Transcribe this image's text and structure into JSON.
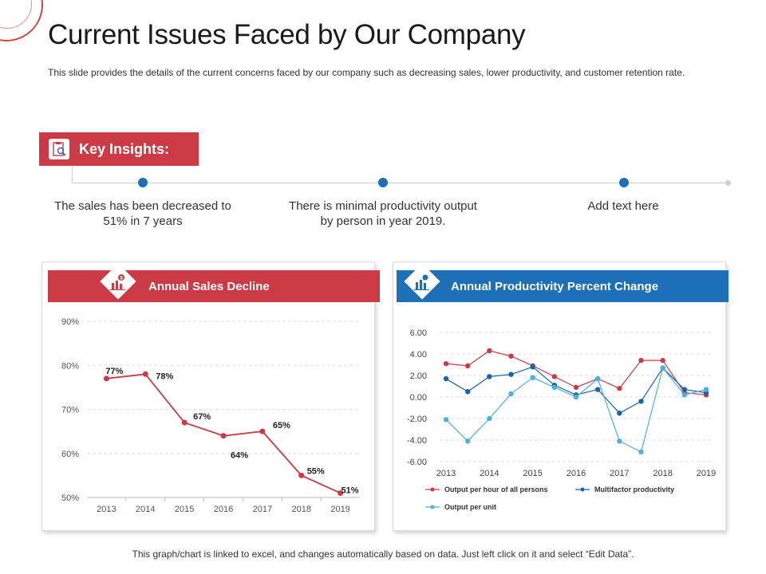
{
  "slide": {
    "title": "Current Issues Faced by Our Company",
    "subtitle": "This slide provides the details of the current concerns faced by our company such as decreasing sales, lower productivity, and customer retention rate.",
    "footer": "This graph/chart is linked to excel, and changes automatically based on data. Just left click on it and select “Edit Data”."
  },
  "insights": {
    "header": "Key Insights:",
    "items": [
      "The sales has been decreased to 51% in 7 years",
      "There is minimal productivity output by person in year 2019.",
      "Add text here"
    ]
  },
  "colors": {
    "red": "#cc3a46",
    "blue": "#1d6fb8",
    "light_blue": "#4ab0e2",
    "dark_blue": "#1565a8"
  },
  "chart_data": [
    {
      "type": "line",
      "title": "Annual Sales Decline",
      "categories": [
        "2013",
        "2014",
        "2015",
        "2016",
        "2017",
        "2018",
        "2019"
      ],
      "values": [
        77,
        78,
        67,
        64,
        65,
        55,
        51
      ],
      "data_labels": [
        "77%",
        "78%",
        "67%",
        "64%",
        "65%",
        "55%",
        "51%"
      ],
      "yticks": [
        "50%",
        "60%",
        "70%",
        "80%",
        "90%"
      ],
      "ylim": [
        50,
        90
      ],
      "grid": true
    },
    {
      "type": "line",
      "title": "Annual Productivity Percent Change",
      "x_labels": [
        "2013",
        "2014",
        "2015",
        "2016",
        "2017",
        "2018",
        "2019"
      ],
      "yticks": [
        "6.00",
        "4.00",
        "2.00",
        "0.00",
        "-2.00",
        "-4.00",
        "-6.00"
      ],
      "ylim": [
        -6,
        6
      ],
      "grid": true,
      "legend_position": "bottom",
      "series": [
        {
          "name": "Output per hour of all persons",
          "values": [
            3.1,
            2.9,
            4.3,
            3.8,
            2.9,
            1.9,
            0.9,
            1.7,
            0.8,
            3.4,
            3.4,
            0.4,
            0.2
          ]
        },
        {
          "name": "Multifactor productivity",
          "values": [
            1.7,
            0.5,
            1.9,
            2.1,
            2.8,
            1.1,
            0.2,
            0.7,
            -1.5,
            -0.4,
            2.7,
            0.7,
            0.4
          ]
        },
        {
          "name": "Output per unit",
          "values": [
            -2.1,
            -4.1,
            -2.0,
            0.3,
            1.8,
            0.9,
            0.0,
            1.7,
            -4.1,
            -5.1,
            2.7,
            0.2,
            0.7
          ]
        }
      ]
    }
  ]
}
